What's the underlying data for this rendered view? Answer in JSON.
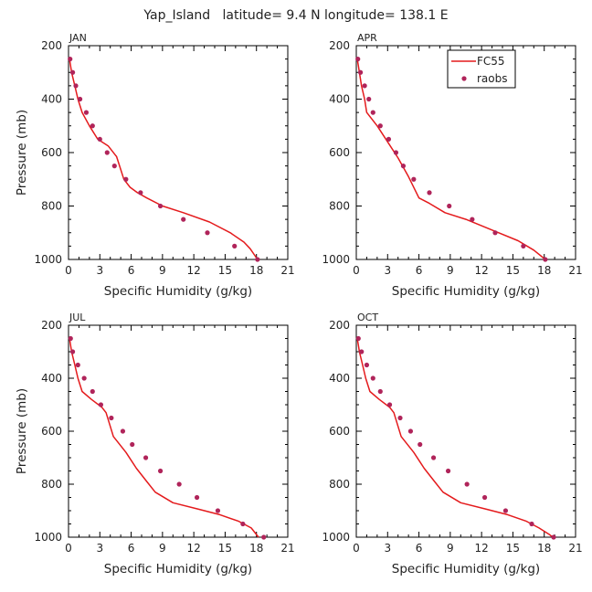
{
  "figure_title": "Yap_Island   latitude= 9.4 N longitude= 138.1 E",
  "colors": {
    "model_line": "#e41a1c",
    "obs_points": "#b0245a",
    "axes": "#000000"
  },
  "chart_data": [
    {
      "type": "line",
      "panel_label": "JAN",
      "xlabel": "Specific Humidity (g/kg)",
      "ylabel": "Pressure (mb)",
      "xlim": [
        0,
        21
      ],
      "ylim": [
        1000,
        200
      ],
      "y_reversed": true,
      "xticks": [
        0,
        3,
        6,
        9,
        12,
        15,
        18,
        21
      ],
      "yticks": [
        200,
        400,
        600,
        800,
        1000
      ],
      "series": [
        {
          "name": "FC55",
          "style": "line",
          "x": [
            0.1,
            0.3,
            0.6,
            0.9,
            1.3,
            2.0,
            2.8,
            3.8,
            4.6,
            5.3,
            5.9,
            6.6,
            7.5,
            9.0,
            11.0,
            13.5,
            15.5,
            16.8,
            17.4,
            18.1
          ],
          "y": [
            250,
            300,
            350,
            400,
            450,
            500,
            550,
            575,
            615,
            700,
            730,
            750,
            770,
            800,
            825,
            860,
            900,
            935,
            960,
            1000
          ]
        },
        {
          "name": "raobs",
          "style": "points",
          "x": [
            0.15,
            0.4,
            0.7,
            1.1,
            1.7,
            2.3,
            3.0,
            3.7,
            4.4,
            5.5,
            6.9,
            8.8,
            11.0,
            13.3,
            15.9,
            18.1
          ],
          "y": [
            250,
            300,
            350,
            400,
            450,
            500,
            550,
            600,
            650,
            700,
            750,
            800,
            850,
            900,
            950,
            1000
          ]
        }
      ]
    },
    {
      "type": "line",
      "panel_label": "APR",
      "xlabel": "Specific Humidity (g/kg)",
      "ylabel": "",
      "xlim": [
        0,
        21
      ],
      "ylim": [
        1000,
        200
      ],
      "y_reversed": true,
      "legend": {
        "position": "top-right",
        "entries": [
          "FC55",
          "raobs"
        ]
      },
      "xticks": [
        0,
        3,
        6,
        9,
        12,
        15,
        18,
        21
      ],
      "yticks": [
        200,
        400,
        600,
        800,
        1000
      ],
      "series": [
        {
          "name": "FC55",
          "style": "line",
          "x": [
            0.1,
            0.3,
            0.5,
            0.8,
            1.0,
            2.0,
            3.0,
            4.0,
            5.0,
            6.0,
            7.0,
            8.5,
            10.5,
            13.0,
            15.5,
            17.0,
            18.1
          ],
          "y": [
            250,
            300,
            350,
            400,
            450,
            500,
            560,
            620,
            690,
            770,
            790,
            825,
            850,
            890,
            930,
            965,
            1000
          ]
        },
        {
          "name": "raobs",
          "style": "points",
          "x": [
            0.15,
            0.4,
            0.8,
            1.2,
            1.6,
            2.3,
            3.1,
            3.8,
            4.5,
            5.5,
            7.0,
            8.9,
            11.1,
            13.3,
            16.0,
            18.1
          ],
          "y": [
            250,
            300,
            350,
            400,
            450,
            500,
            550,
            600,
            650,
            700,
            750,
            800,
            850,
            900,
            950,
            1000
          ]
        }
      ]
    },
    {
      "type": "line",
      "panel_label": "JUL",
      "xlabel": "Specific Humidity (g/kg)",
      "ylabel": "Pressure (mb)",
      "xlim": [
        0,
        21
      ],
      "ylim": [
        1000,
        200
      ],
      "y_reversed": true,
      "xticks": [
        0,
        3,
        6,
        9,
        12,
        15,
        18,
        21
      ],
      "yticks": [
        200,
        400,
        600,
        800,
        1000
      ],
      "series": [
        {
          "name": "FC55",
          "style": "line",
          "x": [
            0.1,
            0.3,
            0.6,
            0.9,
            1.3,
            2.2,
            3.2,
            3.6,
            4.3,
            5.5,
            6.5,
            7.5,
            8.3,
            10.0,
            12.5,
            14.5,
            16.3,
            17.5,
            18.2
          ],
          "y": [
            250,
            300,
            350,
            400,
            450,
            480,
            510,
            530,
            620,
            680,
            740,
            790,
            830,
            870,
            895,
            915,
            940,
            965,
            1000
          ]
        },
        {
          "name": "raobs",
          "style": "points",
          "x": [
            0.2,
            0.4,
            0.9,
            1.5,
            2.3,
            3.1,
            4.1,
            5.2,
            6.1,
            7.4,
            8.8,
            10.6,
            12.3,
            14.3,
            16.7,
            18.7
          ],
          "y": [
            250,
            300,
            350,
            400,
            450,
            500,
            550,
            600,
            650,
            700,
            750,
            800,
            850,
            900,
            950,
            1000
          ]
        }
      ]
    },
    {
      "type": "line",
      "panel_label": "OCT",
      "xlabel": "Specific Humidity (g/kg)",
      "ylabel": "",
      "xlim": [
        0,
        21
      ],
      "ylim": [
        1000,
        200
      ],
      "y_reversed": true,
      "xticks": [
        0,
        3,
        6,
        9,
        12,
        15,
        18,
        21
      ],
      "yticks": [
        200,
        400,
        600,
        800,
        1000
      ],
      "series": [
        {
          "name": "FC55",
          "style": "line",
          "x": [
            0.1,
            0.3,
            0.6,
            0.9,
            1.3,
            2.2,
            3.2,
            3.6,
            4.3,
            5.5,
            6.5,
            7.5,
            8.3,
            10.0,
            12.5,
            14.5,
            16.3,
            17.5,
            18.5,
            18.8
          ],
          "y": [
            250,
            300,
            350,
            400,
            450,
            480,
            510,
            530,
            620,
            680,
            740,
            790,
            830,
            870,
            895,
            915,
            940,
            965,
            990,
            1000
          ]
        },
        {
          "name": "raobs",
          "style": "points",
          "x": [
            0.2,
            0.5,
            1.0,
            1.6,
            2.3,
            3.2,
            4.2,
            5.2,
            6.1,
            7.4,
            8.8,
            10.6,
            12.3,
            14.3,
            16.8,
            18.9
          ],
          "y": [
            250,
            300,
            350,
            400,
            450,
            500,
            550,
            600,
            650,
            700,
            750,
            800,
            850,
            900,
            950,
            1000
          ]
        }
      ]
    }
  ]
}
